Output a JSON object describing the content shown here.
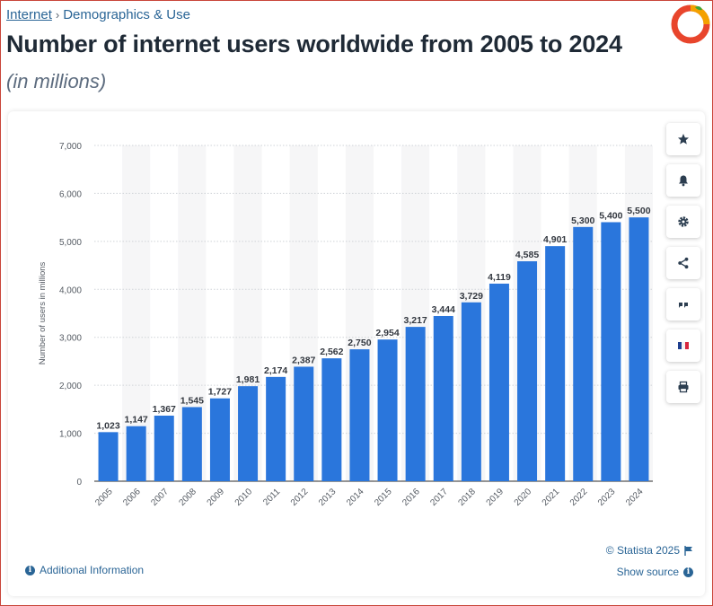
{
  "breadcrumb": {
    "root": "Internet",
    "current": "Demographics & Use"
  },
  "header": {
    "title": "Number of internet users worldwide from 2005 to 2024",
    "subtitle": "(in millions)"
  },
  "toolbar": {
    "items": [
      {
        "name": "star-icon"
      },
      {
        "name": "bell-icon"
      },
      {
        "name": "gear-icon"
      },
      {
        "name": "share-icon"
      },
      {
        "name": "quote-icon"
      },
      {
        "name": "french-flag-icon"
      },
      {
        "name": "print-icon"
      }
    ]
  },
  "footer": {
    "additional_info": "Additional Information",
    "copyright": "© Statista 2025",
    "show_source": "Show source"
  },
  "colors": {
    "bar": "#2a76dc",
    "link": "#2a6596",
    "accent": "#c9453a"
  },
  "chart_data": {
    "type": "bar",
    "title": "Number of internet users worldwide from 2005 to 2024",
    "subtitle": "(in millions)",
    "xlabel": "",
    "ylabel": "Number of users in millions",
    "categories": [
      "2005",
      "2006",
      "2007",
      "2008",
      "2009",
      "2010",
      "2011",
      "2012",
      "2013",
      "2014",
      "2015",
      "2016",
      "2017",
      "2018",
      "2019",
      "2020",
      "2021",
      "2022",
      "2023",
      "2024"
    ],
    "values": [
      1023,
      1147,
      1367,
      1545,
      1727,
      1981,
      2174,
      2387,
      2562,
      2750,
      2954,
      3217,
      3444,
      3729,
      4119,
      4585,
      4901,
      5300,
      5400,
      5500
    ],
    "value_labels": [
      "1,023",
      "1,147",
      "1,367",
      "1,545",
      "1,727",
      "1,981",
      "2,174",
      "2,387",
      "2,562",
      "2,750",
      "2,954",
      "3,217",
      "3,444",
      "3,729",
      "4,119",
      "4,585",
      "4,901",
      "5,300",
      "5,400",
      "5,500"
    ],
    "yticks": [
      0,
      1000,
      2000,
      3000,
      4000,
      5000,
      6000,
      7000
    ],
    "ytick_labels": [
      "0",
      "1,000",
      "2,000",
      "3,000",
      "4,000",
      "5,000",
      "6,000",
      "7,000"
    ],
    "ylim": [
      0,
      7000
    ],
    "grid": true
  }
}
